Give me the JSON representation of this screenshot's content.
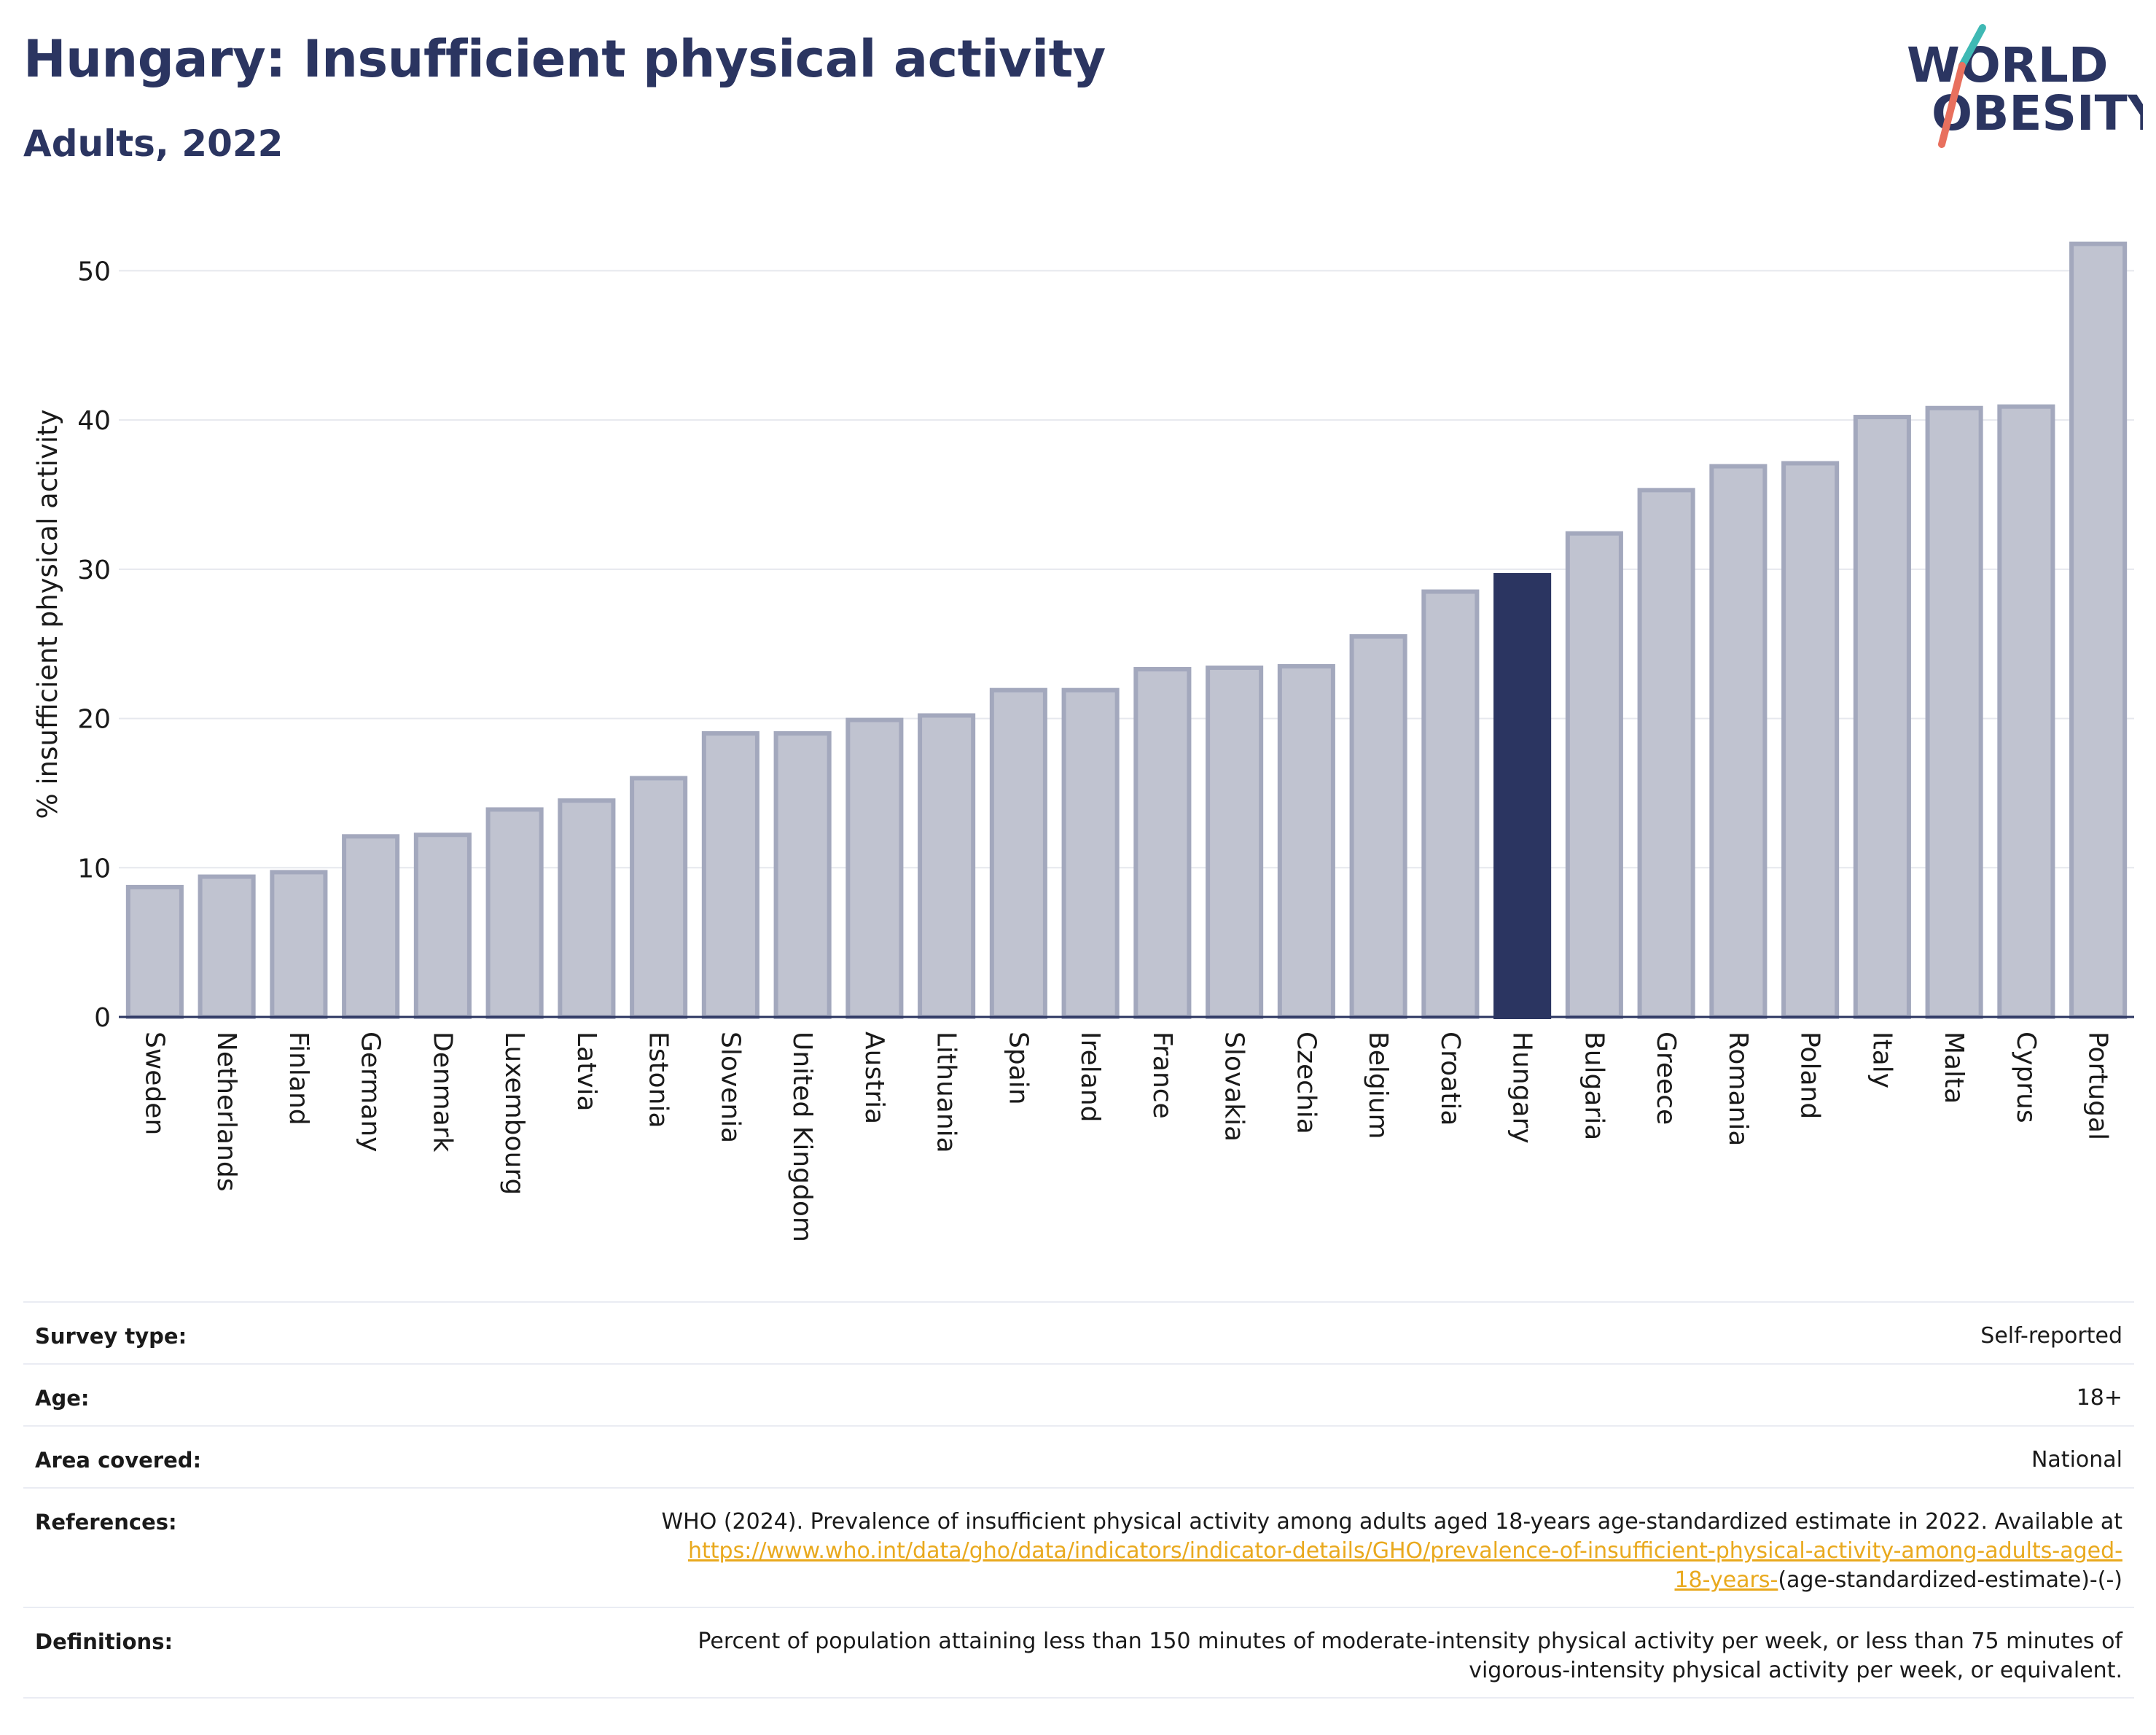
{
  "header": {
    "title": "Hungary: Insufficient physical activity",
    "subtitle": "Adults, 2022"
  },
  "logo": {
    "line1": "WORLD",
    "line2": "OBESITY",
    "accent_teal": "#3fb9b4",
    "accent_coral": "#e8705e"
  },
  "colors": {
    "bar": "#c0c3d0",
    "bar_edge": "#a3a8bd",
    "highlight": "#2b3561",
    "text": "#1a1a1a",
    "grid": "#e6e8ee"
  },
  "chart_data": {
    "type": "bar",
    "title": "Hungary: Insufficient physical activity",
    "subtitle": "Adults, 2022",
    "xlabel": "",
    "ylabel": "% insufficient physical activity",
    "ylim": [
      0,
      53
    ],
    "yticks": [
      0,
      10,
      20,
      30,
      40,
      50
    ],
    "grid": true,
    "highlight": "Hungary",
    "categories": [
      "Sweden",
      "Netherlands",
      "Finland",
      "Germany",
      "Denmark",
      "Luxembourg",
      "Latvia",
      "Estonia",
      "Slovenia",
      "United Kingdom",
      "Austria",
      "Lithuania",
      "Spain",
      "Ireland",
      "France",
      "Slovakia",
      "Czechia",
      "Belgium",
      "Croatia",
      "Hungary",
      "Bulgaria",
      "Greece",
      "Romania",
      "Poland",
      "Italy",
      "Malta",
      "Cyprus",
      "Portugal"
    ],
    "values": [
      8.7,
      9.4,
      9.7,
      12.1,
      12.2,
      13.9,
      14.5,
      16.0,
      19.0,
      19.0,
      19.9,
      20.2,
      21.9,
      21.9,
      23.3,
      23.4,
      23.5,
      25.5,
      28.5,
      29.6,
      32.4,
      35.3,
      36.9,
      37.1,
      40.2,
      40.8,
      40.9,
      51.8
    ]
  },
  "info": {
    "survey_type": {
      "label": "Survey type:",
      "value": "Self-reported"
    },
    "age": {
      "label": "Age:",
      "value": "18+"
    },
    "area": {
      "label": "Area covered:",
      "value": "National"
    },
    "references": {
      "label": "References:",
      "text": "WHO (2024). Prevalence of insufficient physical activity among adults aged 18-years age-standardized estimate in 2022. Available at",
      "link_line1": "https://www.who.int/data/gho/data/indicators/indicator-details/GHO/prevalence-of-insufficient-physical-activity-among-adults-aged-",
      "link_line2": "18-years-",
      "tail": "(age-standardized-estimate)-(-)"
    },
    "definitions": {
      "label": "Definitions:",
      "line1": "Percent of population attaining less than 150 minutes of moderate-intensity physical activity per week, or less than 75 minutes of",
      "line2": "vigorous-intensity physical activity per week, or equivalent."
    }
  }
}
